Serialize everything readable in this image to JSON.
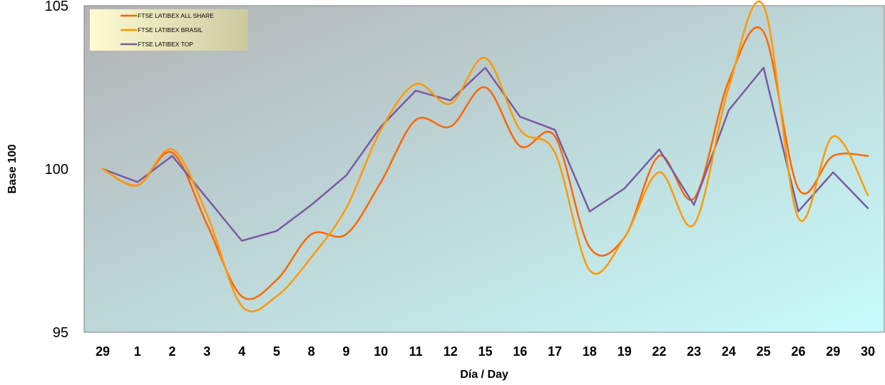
{
  "chart_data": {
    "type": "line",
    "categories": [
      "29",
      "1",
      "2",
      "3",
      "4",
      "5",
      "8",
      "9",
      "10",
      "11",
      "12",
      "15",
      "16",
      "17",
      "18",
      "19",
      "22",
      "23",
      "24",
      "25",
      "26",
      "29",
      "30"
    ],
    "series": [
      {
        "name": "FTSE LATIBEX ALL SHARE",
        "color": "#ff6600",
        "smooth": true,
        "values": [
          100.0,
          99.5,
          100.5,
          98.3,
          96.1,
          96.6,
          98.0,
          98.0,
          99.6,
          101.5,
          101.3,
          102.5,
          100.7,
          101.0,
          97.6,
          97.9,
          100.4,
          99.1,
          102.7,
          104.2,
          99.4,
          100.4,
          100.4
        ]
      },
      {
        "name": "FTSE LATIBEX BRASIL",
        "color": "#ff9900",
        "smooth": true,
        "values": [
          100.0,
          99.5,
          100.6,
          98.6,
          95.8,
          96.1,
          97.3,
          98.8,
          101.2,
          102.6,
          102.0,
          103.4,
          101.2,
          100.5,
          96.9,
          97.9,
          99.9,
          98.3,
          102.5,
          105.0,
          98.5,
          101.0,
          99.2
        ]
      },
      {
        "name": "FTSE LATIBEX TOP",
        "color": "#7a5ba1",
        "smooth": false,
        "values": [
          100.0,
          99.6,
          100.4,
          99.1,
          97.8,
          98.1,
          98.9,
          99.8,
          101.3,
          102.4,
          102.1,
          103.1,
          101.6,
          101.2,
          98.7,
          99.4,
          100.6,
          98.9,
          101.8,
          103.1,
          98.7,
          99.9,
          98.8
        ]
      }
    ],
    "xlabel": "Día / Day",
    "ylabel": "Base 100",
    "ylim": [
      95,
      105
    ],
    "yticks": [
      95,
      100,
      105
    ],
    "grid": false,
    "legend_position": "top-left"
  },
  "colors": {
    "plot_bg_start": "#b3b3b5",
    "plot_bg_end": "#c8fcfc",
    "legend_bg_start": "#fffcd2",
    "legend_bg_end": "#ccc9a0"
  }
}
